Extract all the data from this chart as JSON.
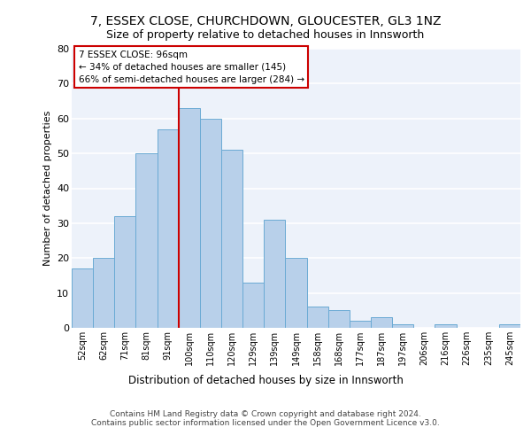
{
  "title1": "7, ESSEX CLOSE, CHURCHDOWN, GLOUCESTER, GL3 1NZ",
  "title2": "Size of property relative to detached houses in Innsworth",
  "xlabel": "Distribution of detached houses by size in Innsworth",
  "ylabel": "Number of detached properties",
  "bar_labels": [
    "52sqm",
    "62sqm",
    "71sqm",
    "81sqm",
    "91sqm",
    "100sqm",
    "110sqm",
    "120sqm",
    "129sqm",
    "139sqm",
    "149sqm",
    "158sqm",
    "168sqm",
    "177sqm",
    "187sqm",
    "197sqm",
    "206sqm",
    "216sqm",
    "226sqm",
    "235sqm",
    "245sqm"
  ],
  "bar_vals": [
    17,
    20,
    32,
    50,
    57,
    63,
    60,
    51,
    13,
    31,
    20,
    6,
    5,
    2,
    3,
    1,
    0,
    1,
    0,
    0,
    1
  ],
  "bar_color": "#b8d0ea",
  "bar_edgecolor": "#6aaad4",
  "bg_color": "#edf2fa",
  "grid_color": "#ffffff",
  "annotation_line1": "7 ESSEX CLOSE: 96sqm",
  "annotation_line2": "← 34% of detached houses are smaller (145)",
  "annotation_line3": "66% of semi-detached houses are larger (284) →",
  "vline_color": "#cc0000",
  "vline_x": 4.5,
  "ylim_max": 80,
  "yticks": [
    0,
    10,
    20,
    30,
    40,
    50,
    60,
    70,
    80
  ],
  "footer_line1": "Contains HM Land Registry data © Crown copyright and database right 2024.",
  "footer_line2": "Contains public sector information licensed under the Open Government Licence v3.0.",
  "annot_facecolor": "#ffffff",
  "annot_edgecolor": "#cc0000",
  "title1_fontsize": 10,
  "title2_fontsize": 9,
  "ylabel_fontsize": 8,
  "xlabel_fontsize": 8.5,
  "tick_fontsize": 8,
  "xtick_fontsize": 7,
  "annot_fontsize": 7.5,
  "footer_fontsize": 6.5
}
